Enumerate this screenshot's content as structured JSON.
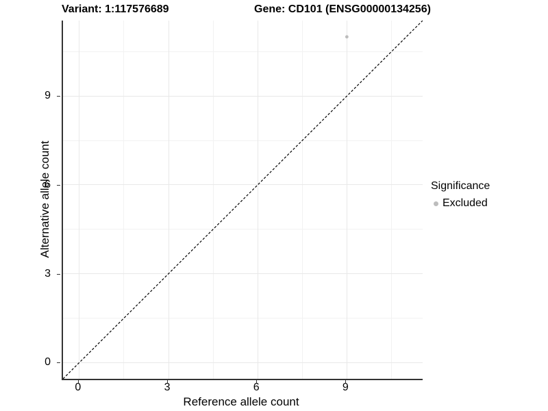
{
  "header": {
    "left_title": "Variant: 1:117576689",
    "right_title": "Gene: CD101 (ENSG00000134256)"
  },
  "legend": {
    "title": "Significance",
    "items": [
      {
        "label": "Excluded",
        "color": "#bdbdbd"
      }
    ]
  },
  "chart_data": {
    "type": "scatter",
    "title": "Variant: 1:117576689  |  Gene: CD101 (ENSG00000134256)",
    "xlabel": "Reference allele count",
    "ylabel": "Alternative allele count",
    "xlim": [
      -0.55,
      11.55
    ],
    "ylim": [
      -0.55,
      11.55
    ],
    "x_ticks": [
      0,
      3,
      6,
      9
    ],
    "y_ticks": [
      0,
      3,
      6,
      9
    ],
    "x_minor_ticks": [
      1.5,
      4.5,
      7.5,
      10.5
    ],
    "y_minor_ticks": [
      1.5,
      4.5,
      7.5,
      10.5
    ],
    "grid": "major and minor, light grey on white",
    "legend_position": "right",
    "series": [
      {
        "name": "Excluded",
        "color": "#bdbdbd",
        "points": [
          {
            "x": 9,
            "y": 11
          }
        ]
      }
    ],
    "reference_line": {
      "equation": "y = x",
      "style": "dashed",
      "color": "#000000"
    }
  },
  "colors": {
    "background": "#ffffff",
    "axis_line": "#333333",
    "grid_major": "#e8e8e8",
    "grid_minor": "#f2f2f2",
    "point": "#bdbdbd",
    "reference_line": "#000000",
    "text": "#000000"
  }
}
